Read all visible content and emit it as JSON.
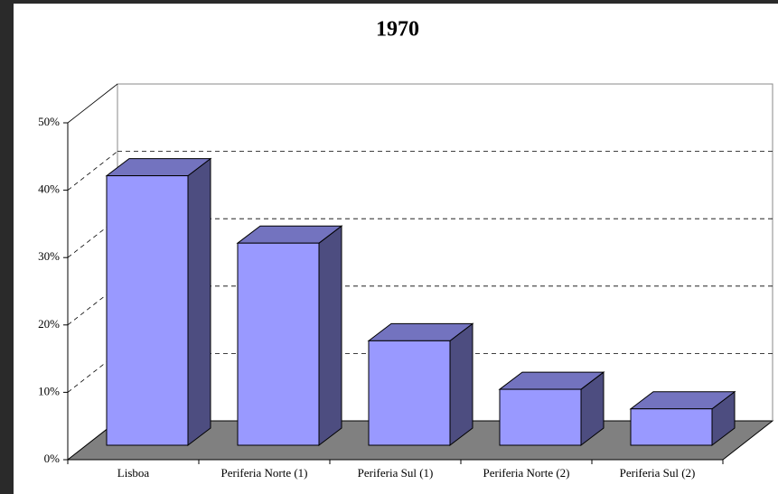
{
  "chart_data": {
    "type": "bar3d",
    "title": "1970",
    "categories": [
      "Lisboa",
      "Periferia Norte (1)",
      "Periferia Sul (1)",
      "Periferia Norte (2)",
      "Periferia Sul (2)"
    ],
    "values": [
      40,
      30,
      15.5,
      8.3,
      5.4
    ],
    "color": "#9999ff",
    "ylim": [
      0,
      50
    ],
    "yticks": [
      {
        "value": 0,
        "label": "0%"
      },
      {
        "value": 10,
        "label": "10%"
      },
      {
        "value": 20,
        "label": "20%"
      },
      {
        "value": 30,
        "label": "30%"
      },
      {
        "value": 40,
        "label": "40%"
      },
      {
        "value": 50,
        "label": "50%"
      }
    ],
    "grid": true
  }
}
